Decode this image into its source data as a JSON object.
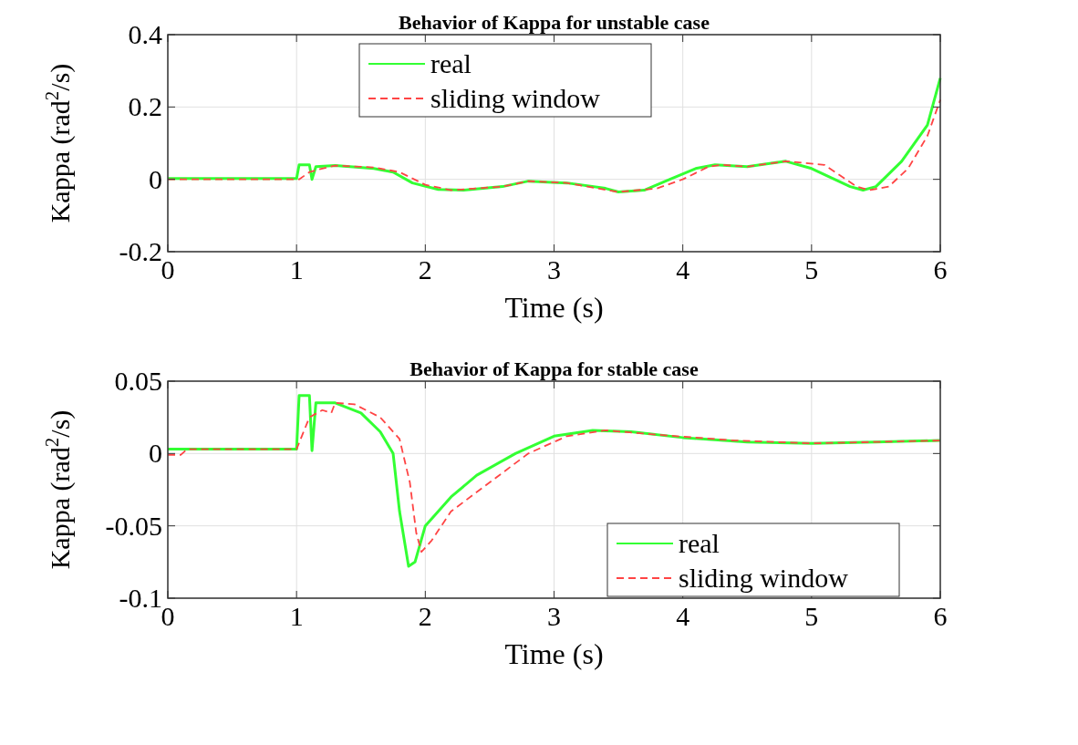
{
  "chart_data": [
    {
      "type": "line",
      "title": "Behavior of Kappa for unstable case",
      "xlabel": "Time (s)",
      "ylabel": "Kappa (rad$^{2}$/s)",
      "xlim": [
        0,
        6
      ],
      "xticks": [
        0,
        1,
        2,
        3,
        4,
        5,
        6
      ],
      "ylim": [
        -0.2,
        0.4
      ],
      "yticks": [
        -0.2,
        0,
        0.2,
        0.4
      ],
      "grid": true,
      "legend": "top left",
      "series": [
        {
          "name": "real",
          "color": "#33ff33",
          "line_style": "solid",
          "x": [
            0,
            1,
            1.02,
            1.1,
            1.12,
            1.15,
            1.3,
            1.6,
            1.75,
            1.9,
            2.1,
            2.3,
            2.6,
            2.8,
            3.1,
            3.4,
            3.5,
            3.7,
            3.9,
            4.1,
            4.25,
            4.5,
            4.8,
            5,
            5.3,
            5.4,
            5.5,
            5.7,
            5.9,
            6
          ],
          "values": [
            0.002,
            0.002,
            0.04,
            0.04,
            0,
            0.035,
            0.038,
            0.03,
            0.02,
            -0.01,
            -0.028,
            -0.03,
            -0.02,
            -0.005,
            -0.01,
            -0.025,
            -0.035,
            -0.03,
            0,
            0.03,
            0.04,
            0.035,
            0.05,
            0.03,
            -0.02,
            -0.03,
            -0.02,
            0.05,
            0.15,
            0.28
          ]
        },
        {
          "name": "sliding window",
          "color": "#ff4444",
          "line_style": "dashed",
          "x": [
            0,
            1.02,
            1.1,
            1.2,
            1.3,
            1.6,
            1.8,
            2,
            2.2,
            2.6,
            2.8,
            3.1,
            3.5,
            3.8,
            4,
            4.2,
            4.3,
            4.5,
            4.8,
            5.1,
            5.35,
            5.45,
            5.6,
            5.75,
            5.9,
            6
          ],
          "values": [
            0,
            0,
            0.02,
            0.03,
            0.038,
            0.033,
            0.02,
            -0.015,
            -0.03,
            -0.02,
            -0.005,
            -0.01,
            -0.035,
            -0.025,
            0,
            0.035,
            0.04,
            0.035,
            0.05,
            0.04,
            -0.02,
            -0.03,
            -0.02,
            0.03,
            0.12,
            0.22
          ]
        }
      ]
    },
    {
      "type": "line",
      "title": "Behavior of Kappa for stable case",
      "xlabel": "Time (s)",
      "ylabel": "Kappa (rad$^{2}$/s)",
      "xlim": [
        0,
        6
      ],
      "xticks": [
        0,
        1,
        2,
        3,
        4,
        5,
        6
      ],
      "ylim": [
        -0.1,
        0.05
      ],
      "yticks": [
        -0.1,
        -0.05,
        0,
        0.05
      ],
      "grid": true,
      "legend": "bottom right",
      "series": [
        {
          "name": "real",
          "color": "#33ff33",
          "line_style": "solid",
          "x": [
            0,
            1,
            1.02,
            1.1,
            1.12,
            1.15,
            1.3,
            1.5,
            1.65,
            1.75,
            1.8,
            1.87,
            1.92,
            2,
            2.2,
            2.4,
            2.7,
            3,
            3.3,
            3.6,
            4,
            4.5,
            5,
            5.5,
            6
          ],
          "values": [
            0.003,
            0.003,
            0.04,
            0.04,
            0.002,
            0.035,
            0.035,
            0.028,
            0.015,
            0,
            -0.04,
            -0.078,
            -0.075,
            -0.05,
            -0.03,
            -0.015,
            0,
            0.012,
            0.016,
            0.015,
            0.011,
            0.008,
            0.007,
            0.008,
            0.009
          ]
        },
        {
          "name": "sliding window",
          "color": "#ff4444",
          "line_style": "dashed",
          "x": [
            0,
            0.1,
            0.15,
            1,
            1.1,
            1.2,
            1.27,
            1.3,
            1.45,
            1.65,
            1.8,
            1.88,
            1.93,
            1.97,
            2.05,
            2.2,
            2.5,
            2.8,
            3.1,
            3.4,
            3.8,
            4.4,
            5,
            5.5,
            6
          ],
          "values": [
            -0.001,
            -0.001,
            0.003,
            0.003,
            0.025,
            0.03,
            0.028,
            0.035,
            0.034,
            0.025,
            0.01,
            -0.02,
            -0.055,
            -0.068,
            -0.06,
            -0.04,
            -0.02,
            0,
            0.012,
            0.016,
            0.013,
            0.009,
            0.007,
            0.008,
            0.009
          ]
        }
      ]
    }
  ]
}
